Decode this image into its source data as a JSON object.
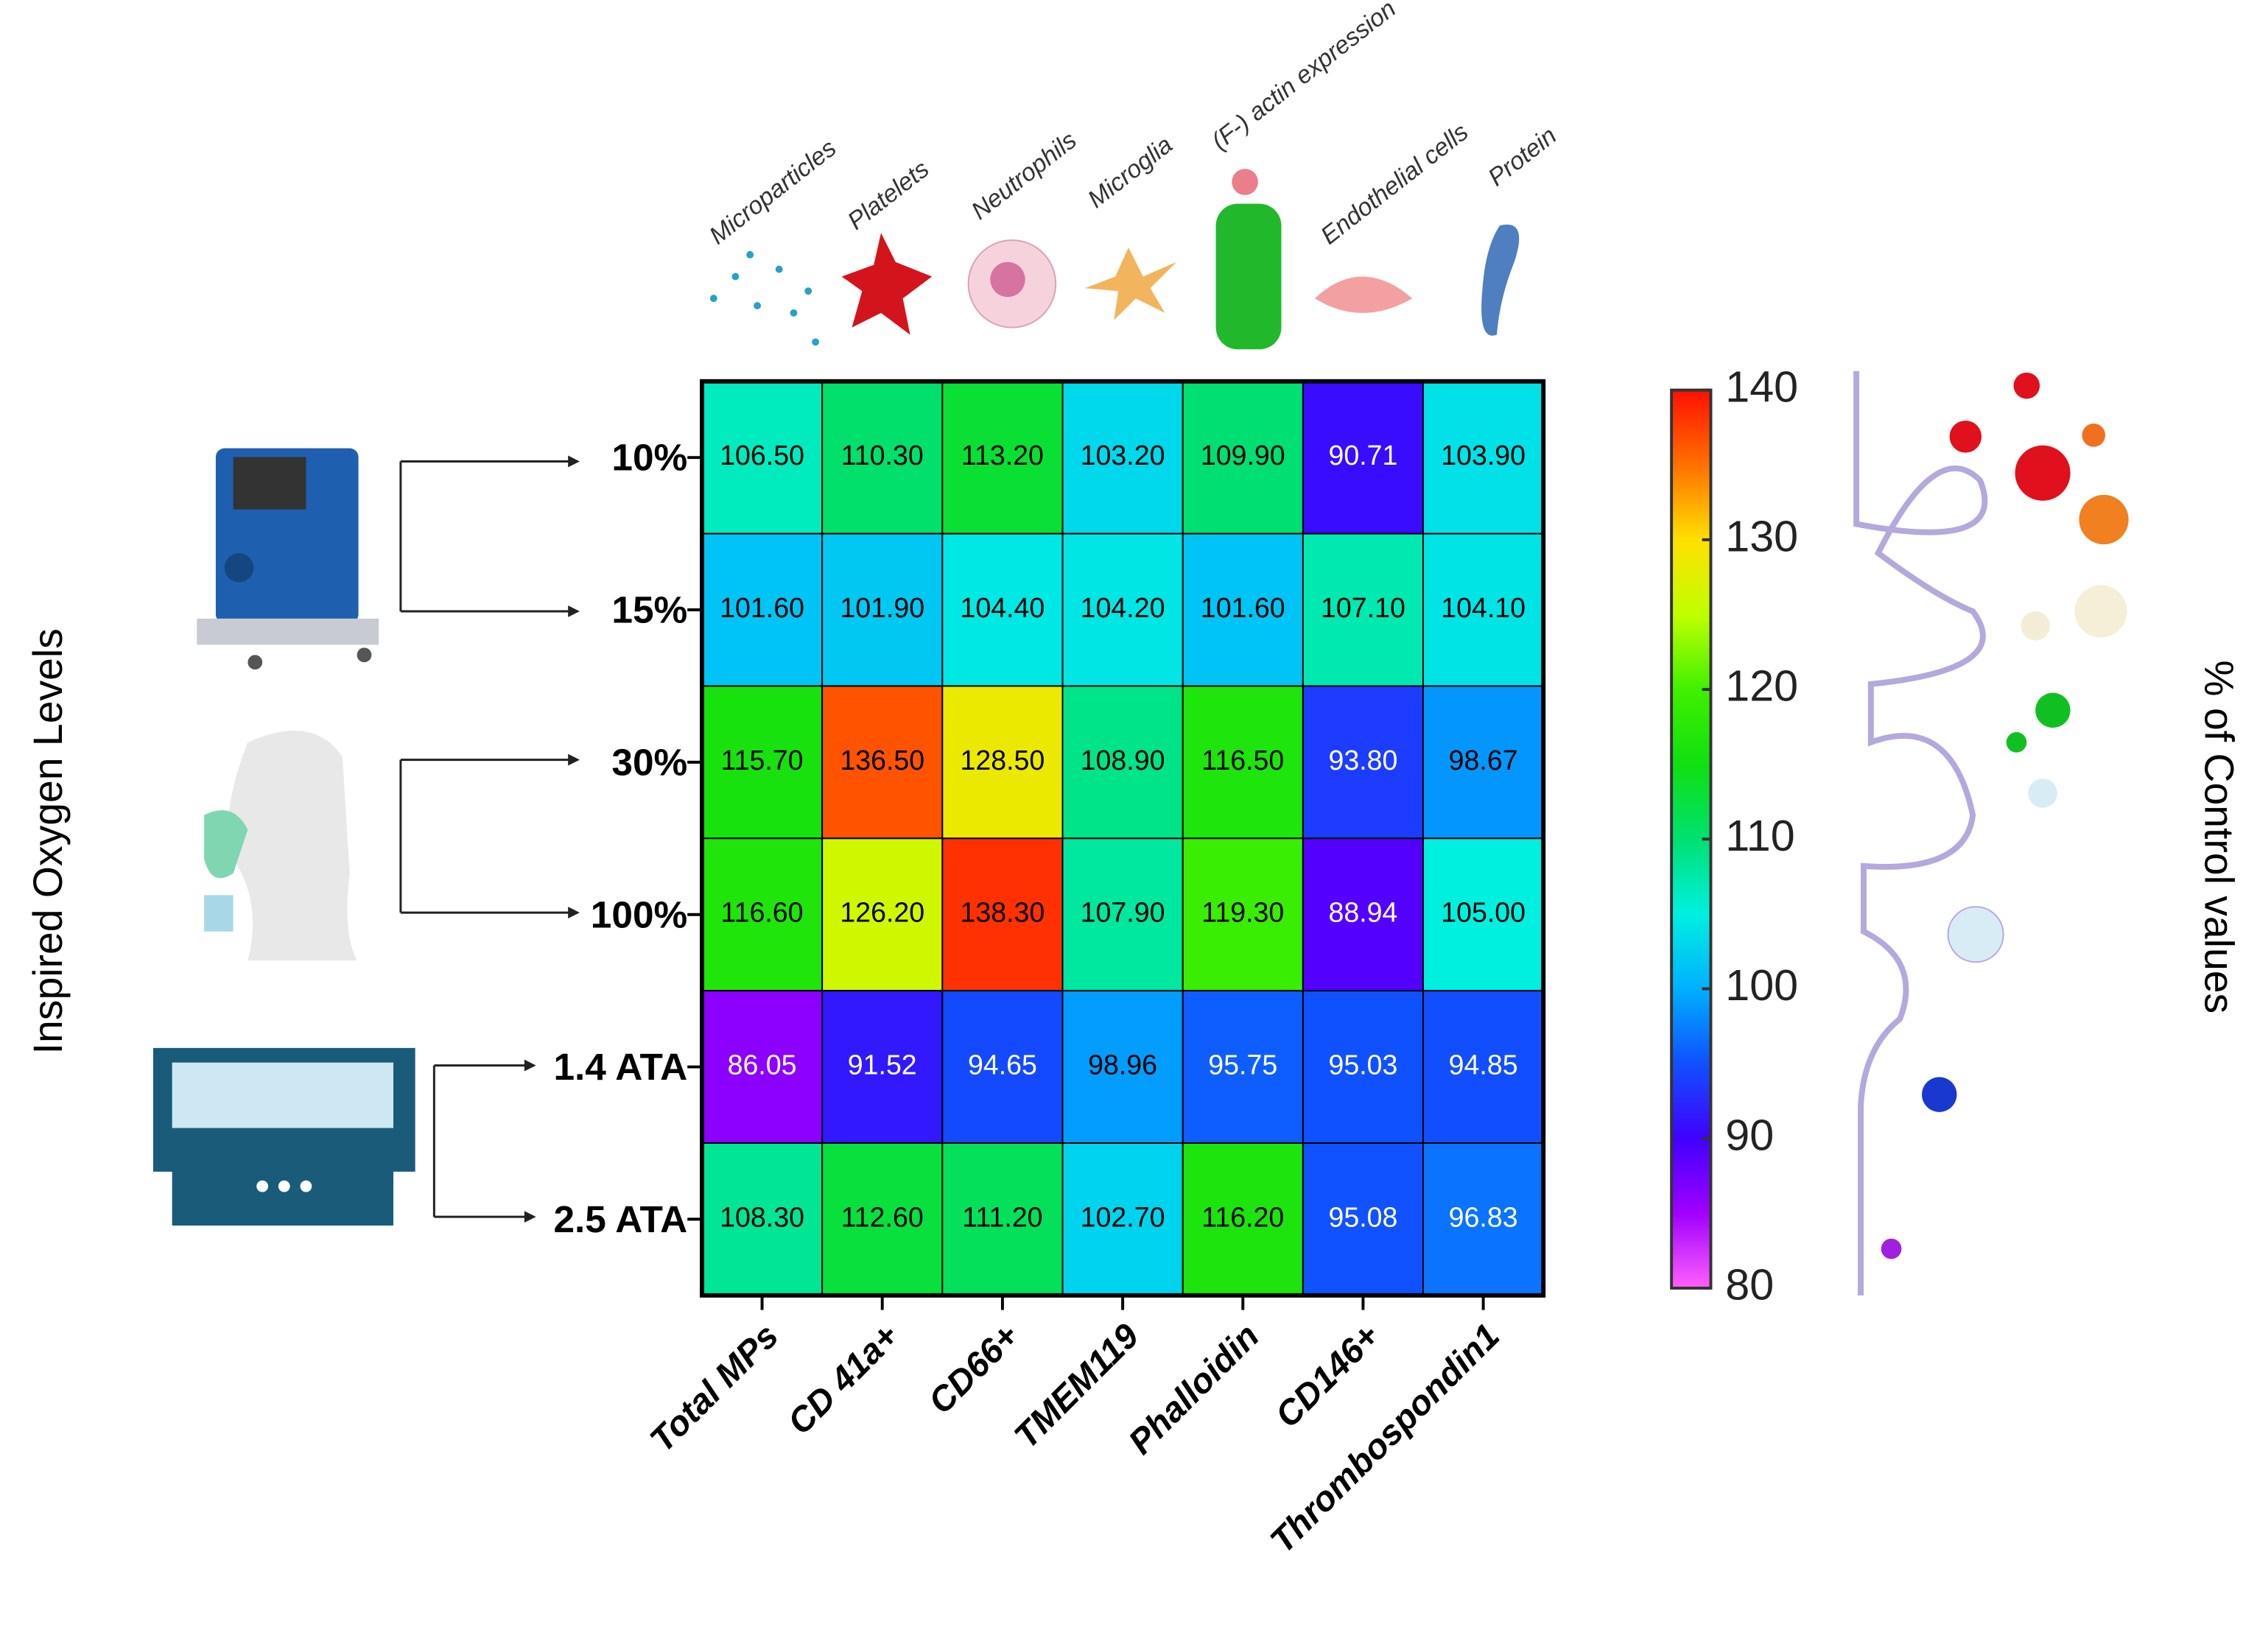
{
  "chart_data": {
    "type": "heatmap",
    "y_axis_label": "Inspired Oxygen Levels",
    "colorbar_label": "% of Control values",
    "annotations": [
      "Microparticles",
      "Platelets",
      "Neutrophils",
      "Microglia",
      "(F-) actin expression",
      "Endothelial cells",
      "Protein"
    ],
    "x_categories": [
      "Total MPs",
      "CD 41a+",
      "CD66+",
      "TMEM119",
      "Phalloidin",
      "CD146+",
      "Thrombospondin1"
    ],
    "y_categories": [
      "10%",
      "15%",
      "30%",
      "100%",
      "1.4 ATA",
      "2.5 ATA"
    ],
    "values": [
      [
        106.5,
        110.3,
        113.2,
        103.2,
        109.9,
        90.71,
        103.9
      ],
      [
        101.6,
        101.9,
        104.4,
        104.2,
        101.6,
        107.1,
        104.1
      ],
      [
        115.7,
        136.5,
        128.5,
        108.9,
        116.5,
        93.8,
        98.67
      ],
      [
        116.6,
        126.2,
        138.3,
        107.9,
        119.3,
        88.94,
        105
      ],
      [
        86.05,
        91.52,
        94.65,
        98.96,
        95.75,
        95.03,
        94.85
      ],
      [
        108.3,
        112.6,
        111.2,
        102.7,
        116.2,
        95.08,
        96.83
      ]
    ],
    "value_labels": [
      [
        "106.50",
        "110.30",
        "113.20",
        "103.20",
        "109.90",
        "90.71",
        "103.90"
      ],
      [
        "101.60",
        "101.90",
        "104.40",
        "104.20",
        "101.60",
        "107.10",
        "104.10"
      ],
      [
        "115.70",
        "136.50",
        "128.50",
        "108.90",
        "116.50",
        "93.80",
        "98.67"
      ],
      [
        "116.60",
        "126.20",
        "138.30",
        "107.90",
        "119.30",
        "88.94",
        "105.00"
      ],
      [
        "86.05",
        "91.52",
        "94.65",
        "98.96",
        "95.75",
        "95.03",
        "94.85"
      ],
      [
        "108.30",
        "112.60",
        "111.20",
        "102.70",
        "116.20",
        "95.08",
        "96.83"
      ]
    ],
    "clim": [
      80,
      140
    ],
    "cticks": [
      80,
      90,
      100,
      110,
      120,
      130,
      140
    ],
    "colormap": [
      "#ff60ff",
      "#a000ff",
      "#4000ff",
      "#1050ff",
      "#00b0ff",
      "#00f0e0",
      "#00e070",
      "#10e010",
      "#40f000",
      "#c0ff00",
      "#ffe000",
      "#ff7000",
      "#ff1000"
    ]
  }
}
